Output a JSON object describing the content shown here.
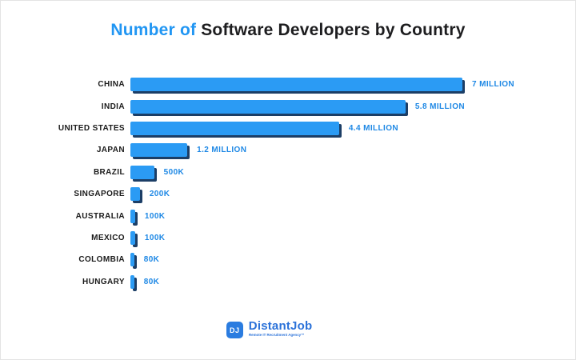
{
  "title": {
    "accent": "Number of",
    "rest": " Software Developers by Country"
  },
  "chart_data": {
    "type": "bar",
    "orientation": "horizontal",
    "title": "Number of Software Developers by Country",
    "categories": [
      "CHINA",
      "INDIA",
      "UNITED STATES",
      "JAPAN",
      "BRAZIL",
      "SINGAPORE",
      "AUSTRALIA",
      "MEXICO",
      "COLOMBIA",
      "HUNGARY"
    ],
    "values": [
      7000000,
      5800000,
      4400000,
      1200000,
      500000,
      200000,
      100000,
      100000,
      80000,
      80000
    ],
    "value_labels": [
      "7 MILLION",
      "5.8 MILLION",
      "4.4 MILLION",
      "1.2 MILLION",
      "500K",
      "200K",
      "100K",
      "100K",
      "80K",
      "80K"
    ],
    "xlim": [
      0,
      7000000
    ],
    "grid": false,
    "legend": false,
    "bar_color": "#2b9bf4",
    "bar_shadow_color": "#1c3e66",
    "category_label_color": "#1b1b1b",
    "value_label_color": "#1e88e5"
  },
  "footer": {
    "icon_text": "DJ",
    "brand": "DistantJob",
    "tagline": "Remote IT Recruitment Agency™"
  },
  "colors": {
    "title_accent": "#2196f3",
    "title_dark": "#1d1d1f",
    "brand_blue": "#2b72d9",
    "logo_bg": "#2a7ce0",
    "background": "#ffffff"
  }
}
